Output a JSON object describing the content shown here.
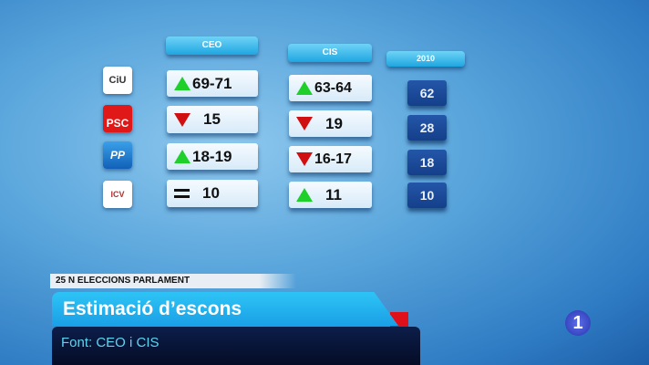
{
  "table": {
    "headers": [
      "CEO",
      "CIS",
      "2010"
    ],
    "rows": [
      {
        "party": "CiU",
        "ceo": {
          "trend": "up",
          "value": "69-71"
        },
        "cis": {
          "trend": "up",
          "value": "63-64"
        },
        "y2010": "62"
      },
      {
        "party": "PSC",
        "ceo": {
          "trend": "down",
          "value": "15"
        },
        "cis": {
          "trend": "down",
          "value": "19"
        },
        "y2010": "28"
      },
      {
        "party": "PP",
        "ceo": {
          "trend": "up",
          "value": "18-19"
        },
        "cis": {
          "trend": "down",
          "value": "16-17"
        },
        "y2010": "18"
      },
      {
        "party": "ICV",
        "ceo": {
          "trend": "equal",
          "value": "10"
        },
        "cis": {
          "trend": "up",
          "value": "11"
        },
        "y2010": "10"
      }
    ]
  },
  "lower_third": {
    "tag": "25 N ELECCIONS PARLAMENT",
    "title": "Estimació d’escons",
    "source": "Font: CEO i CIS"
  },
  "channel_logo": "1",
  "colors": {
    "up": "#1fd02a",
    "down": "#d01010",
    "header": "#1fa6e0",
    "y2010": "#1a4a98"
  }
}
